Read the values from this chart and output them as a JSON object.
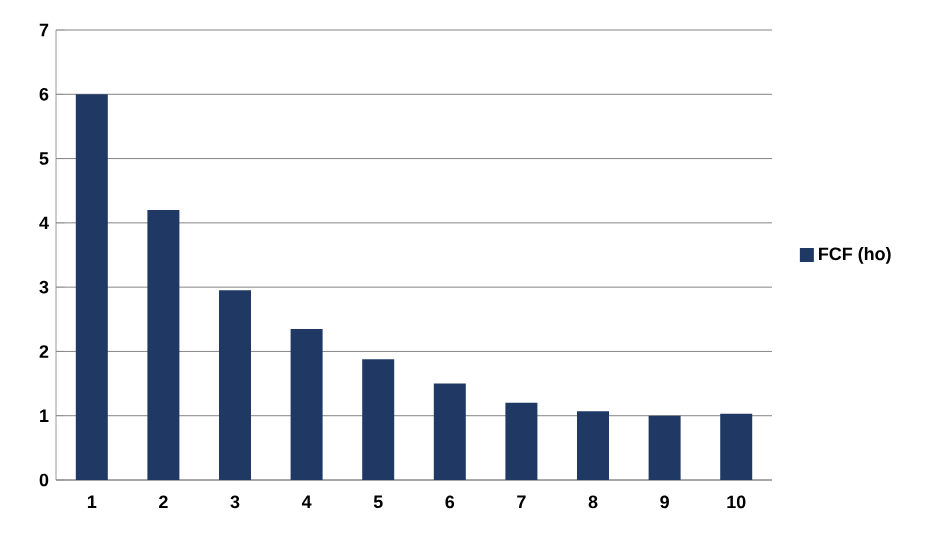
{
  "chart_data": {
    "type": "bar",
    "categories": [
      "1",
      "2",
      "3",
      "4",
      "5",
      "6",
      "7",
      "8",
      "9",
      "10"
    ],
    "series": [
      {
        "name": "FCF (ho)",
        "color": "#1f3864",
        "values": [
          6.0,
          4.2,
          2.95,
          2.35,
          1.88,
          1.5,
          1.2,
          1.07,
          1.0,
          1.03
        ]
      }
    ],
    "ylim": [
      0,
      7
    ],
    "yticks": [
      0,
      1,
      2,
      3,
      4,
      5,
      6,
      7
    ],
    "grid": "y",
    "legend": "right"
  }
}
